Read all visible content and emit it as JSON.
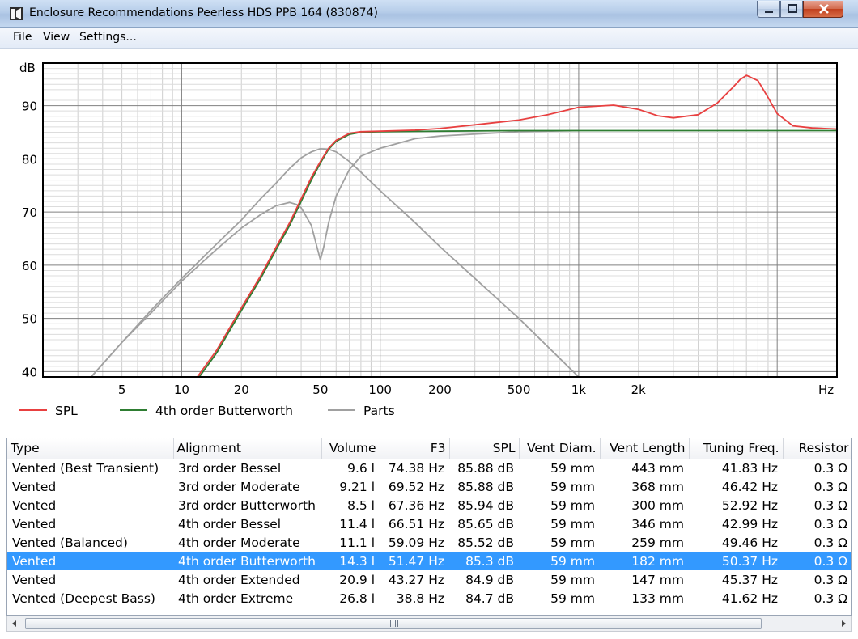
{
  "window": {
    "title": "Enclosure Recommendations Peerless HDS PPB 164 (830874)",
    "icon": "speaker-icon",
    "controls": [
      "minimize-icon",
      "maximize-icon",
      "close-icon"
    ]
  },
  "menu": {
    "file": "File",
    "view": "View",
    "settings": "Settings..."
  },
  "chart_data": {
    "type": "line",
    "title": "",
    "ylabel": "dB",
    "xlabel": "Hz",
    "x_scale": "log",
    "xlim": [
      2,
      20000
    ],
    "ylim": [
      39,
      98
    ],
    "x_ticks": [
      {
        "value": 5,
        "label": "5"
      },
      {
        "value": 10,
        "label": "10"
      },
      {
        "value": 20,
        "label": "20"
      },
      {
        "value": 50,
        "label": "50"
      },
      {
        "value": 100,
        "label": "100"
      },
      {
        "value": 200,
        "label": "200"
      },
      {
        "value": 500,
        "label": "500"
      },
      {
        "value": 1000,
        "label": "1k"
      },
      {
        "value": 2000,
        "label": "2k"
      }
    ],
    "y_ticks": [
      40,
      50,
      60,
      70,
      80,
      90
    ],
    "grid": true,
    "legend_position": "bottom",
    "series": [
      {
        "name": "SPL",
        "color": "#e84040",
        "x": [
          12,
          15,
          20,
          25,
          30,
          35,
          40,
          45,
          50,
          55,
          60,
          70,
          80,
          100,
          150,
          200,
          300,
          500,
          700,
          1000,
          1500,
          2000,
          2500,
          3000,
          4000,
          5000,
          6000,
          6500,
          7000,
          8000,
          9000,
          10000,
          12000,
          15000,
          20000
        ],
        "y": [
          39,
          44,
          52,
          58,
          63.5,
          68,
          72.5,
          76.5,
          79.5,
          82,
          83.5,
          84.8,
          85.1,
          85.2,
          85.4,
          85.7,
          86.4,
          87.3,
          88.3,
          89.7,
          90.1,
          89.3,
          88.1,
          87.7,
          88.3,
          90.5,
          93.5,
          94.9,
          95.7,
          94.7,
          91.5,
          88.5,
          86.2,
          85.8,
          85.6
        ]
      },
      {
        "name": "4th order Butterworth",
        "color": "#2e7d32",
        "x": [
          12,
          15,
          20,
          25,
          30,
          35,
          40,
          45,
          50,
          55,
          60,
          70,
          80,
          100,
          200,
          500,
          1000,
          2000,
          5000,
          10000,
          20000
        ],
        "y": [
          38.5,
          43.5,
          51.5,
          57.5,
          63,
          67.5,
          72,
          76,
          79.2,
          81.8,
          83.3,
          84.6,
          85,
          85.1,
          85.2,
          85.3,
          85.3,
          85.3,
          85.3,
          85.3,
          85.3
        ]
      },
      {
        "name": "Parts",
        "color": "#a0a0a0",
        "x": [
          3.5,
          5,
          7,
          10,
          15,
          20,
          25,
          30,
          35,
          38,
          40,
          45,
          50,
          52,
          55,
          60,
          70,
          80,
          100,
          150,
          200,
          500,
          1000
        ],
        "y": [
          39,
          45.5,
          51,
          57,
          63,
          67,
          69.5,
          71.2,
          71.8,
          71.4,
          70.8,
          67.5,
          61,
          63.5,
          68,
          73,
          78,
          80.5,
          82,
          83.8,
          84.3,
          85.1,
          85.3
        ]
      },
      {
        "name": "Parts",
        "color": "#a0a0a0",
        "x": [
          3.5,
          5,
          7,
          10,
          15,
          20,
          25,
          30,
          35,
          40,
          45,
          50,
          55,
          60,
          70,
          80,
          100,
          150,
          200,
          500,
          1000
        ],
        "y": [
          39,
          45.5,
          51.5,
          57.5,
          64,
          68.5,
          72.5,
          75.5,
          78.2,
          80.2,
          81.3,
          81.9,
          81.8,
          81.3,
          79.5,
          77.5,
          74,
          68,
          63.5,
          50,
          39
        ]
      }
    ],
    "legend": [
      {
        "label": "SPL",
        "color": "#e84040"
      },
      {
        "label": "4th order Butterworth",
        "color": "#2e7d32"
      },
      {
        "label": "Parts",
        "color": "#a0a0a0"
      }
    ]
  },
  "table": {
    "columns": [
      "Type",
      "Alignment",
      "Volume",
      "F3",
      "SPL",
      "Vent Diam.",
      "Vent Length",
      "Tuning Freq.",
      "Resistor"
    ],
    "selected_row": 5,
    "rows": [
      [
        "Vented (Best Transient)",
        "3rd order Bessel",
        "9.6 l",
        "74.38 Hz",
        "85.88 dB",
        "59 mm",
        "443 mm",
        "41.83 Hz",
        "0.3 Ω"
      ],
      [
        "Vented",
        "3rd order Moderate",
        "9.21 l",
        "69.52 Hz",
        "85.88 dB",
        "59 mm",
        "368 mm",
        "46.42 Hz",
        "0.3 Ω"
      ],
      [
        "Vented",
        "3rd order Butterworth",
        "8.5 l",
        "67.36 Hz",
        "85.94 dB",
        "59 mm",
        "300 mm",
        "52.92 Hz",
        "0.3 Ω"
      ],
      [
        "Vented",
        "4th order Bessel",
        "11.4 l",
        "66.51 Hz",
        "85.65 dB",
        "59 mm",
        "346 mm",
        "42.99 Hz",
        "0.3 Ω"
      ],
      [
        "Vented (Balanced)",
        "4th order Moderate",
        "11.1 l",
        "59.09 Hz",
        "85.52 dB",
        "59 mm",
        "259 mm",
        "49.46 Hz",
        "0.3 Ω"
      ],
      [
        "Vented",
        "4th order Butterworth",
        "14.3 l",
        "51.47 Hz",
        "85.3 dB",
        "59 mm",
        "182 mm",
        "50.37 Hz",
        "0.3 Ω"
      ],
      [
        "Vented",
        "4th order Extended",
        "20.9 l",
        "43.27 Hz",
        "84.9 dB",
        "59 mm",
        "147 mm",
        "45.37 Hz",
        "0.3 Ω"
      ],
      [
        "Vented (Deepest Bass)",
        "4th order Extreme",
        "26.8 l",
        "38.8 Hz",
        "84.7 dB",
        "59 mm",
        "133 mm",
        "41.62 Hz",
        "0.3 Ω"
      ]
    ]
  }
}
